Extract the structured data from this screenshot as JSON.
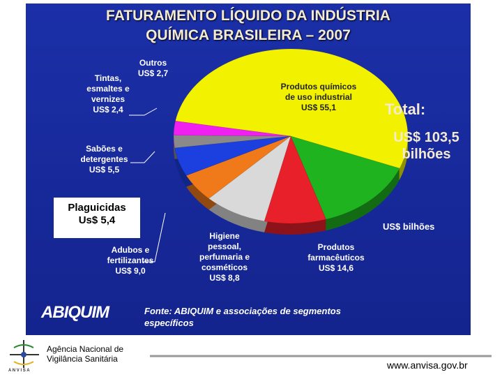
{
  "chart_data": {
    "type": "pie",
    "title": "FATURAMENTO LÍQUIDO DA INDÚSTRIA QUÍMICA BRASILEIRA – 2007",
    "categories": [
      "Produtos químicos de uso industrial",
      "Produtos farmacêuticos",
      "Higiene pessoal, perfumaria e cosméticos",
      "Adubos e fertilizantes",
      "Plaguicidas",
      "Sabões e detergentes",
      "Tintas, esmaltes e vernizes",
      "Outros"
    ],
    "values": [
      55.1,
      14.6,
      8.8,
      9.0,
      5.4,
      5.5,
      2.4,
      2.7
    ],
    "value_labels": [
      "US$ 55,1",
      "US$ 14,6",
      "US$ 8,8",
      "US$ 9,0",
      "Us$ 5,4",
      "US$ 5,5",
      "US$ 2,4",
      "US$ 2,7"
    ],
    "colors": [
      "#f2f200",
      "#1fb31f",
      "#e8202a",
      "#d9d9d9",
      "#f07a1a",
      "#1c3fe0",
      "#8a8a8a",
      "#f020f0"
    ],
    "total_label": "Total:",
    "total_text": "US$ 103,5 bilhões",
    "unit_label": "US$ bilhões",
    "source": "Fonte: ABIQUIM e associações de segmentos específicos",
    "logo": "ABIQUIM"
  },
  "footer": {
    "agency": "Agência Nacional de Vigilância Sanitária",
    "acronym": "A N V I S A",
    "url": "www.anvisa.gov.br"
  }
}
